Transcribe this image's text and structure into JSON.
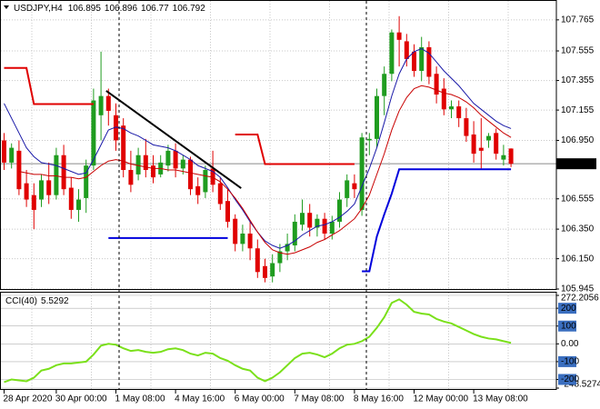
{
  "chart_data": [
    {
      "type": "candlestick",
      "title": "USDJPY,H4",
      "categories": [
        "28 Apr 2020",
        null,
        null,
        null,
        null,
        null,
        null,
        "30 Apr 00:00",
        null,
        null,
        null,
        null,
        null,
        null,
        null,
        "1 May 08:00",
        null,
        null,
        null,
        null,
        null,
        null,
        null,
        "4 May 16:00",
        null,
        null,
        null,
        null,
        null,
        null,
        null,
        "6 May 00:00",
        null,
        null,
        null,
        null,
        null,
        null,
        null,
        "7 May 08:00",
        null,
        null,
        null,
        null,
        null,
        null,
        null,
        "8 May 16:00",
        null,
        null,
        null,
        null,
        null,
        null,
        null,
        "12 May 00:00",
        null,
        null,
        null,
        null,
        null,
        null,
        null,
        "13 May 08:00",
        null,
        null,
        null,
        null,
        null
      ],
      "open": [
        106.95,
        106.8,
        106.88,
        106.66,
        106.58,
        106.55,
        106.68,
        106.58,
        106.85,
        106.63,
        106.48,
        106.56,
        106.78,
        107.12,
        107.25,
        107.12,
        107.05,
        106.75,
        106.72,
        106.85,
        106.78,
        106.72,
        106.78,
        106.88,
        106.76,
        106.82,
        106.64,
        106.6,
        106.76,
        106.66,
        106.54,
        106.42,
        106.25,
        106.32,
        106.22,
        106.1,
        106.03,
        106.12,
        106.2,
        106.24,
        106.38,
        106.46,
        106.36,
        106.42,
        106.32,
        106.4,
        106.56,
        106.66,
        106.48,
        106.95,
        106.96,
        107.25,
        107.4,
        107.68,
        107.62,
        107.55,
        107.42,
        107.58,
        107.4,
        107.3,
        107.16,
        107.18,
        107.1,
        106.99,
        106.9,
        106.95,
        107.0,
        106.82,
        106.895
      ],
      "high": [
        107.0,
        106.93,
        106.95,
        106.75,
        106.66,
        106.72,
        106.8,
        106.9,
        106.92,
        106.7,
        106.62,
        106.82,
        107.3,
        107.55,
        107.3,
        107.2,
        107.1,
        106.88,
        106.9,
        106.96,
        106.85,
        106.85,
        106.92,
        106.93,
        106.85,
        106.84,
        106.7,
        106.78,
        106.88,
        106.7,
        106.62,
        106.45,
        106.38,
        106.4,
        106.28,
        106.15,
        106.18,
        106.25,
        106.32,
        106.45,
        106.55,
        106.52,
        106.45,
        106.46,
        106.44,
        106.6,
        106.72,
        106.72,
        107.0,
        107.0,
        107.3,
        107.45,
        107.7,
        107.79,
        107.67,
        107.6,
        107.65,
        107.62,
        107.45,
        107.37,
        107.22,
        107.22,
        107.17,
        107.08,
        107.1,
        107.0,
        107.03,
        106.92,
        106.896
      ],
      "low": [
        106.75,
        106.76,
        106.58,
        106.5,
        106.35,
        106.5,
        106.52,
        106.55,
        106.58,
        106.42,
        106.4,
        106.46,
        106.75,
        106.95,
        107.05,
        106.88,
        106.7,
        106.6,
        106.68,
        106.7,
        106.66,
        106.7,
        106.74,
        106.7,
        106.72,
        106.58,
        106.52,
        106.56,
        106.6,
        106.48,
        106.36,
        106.2,
        106.2,
        106.14,
        106.02,
        105.99,
        105.99,
        106.06,
        106.14,
        106.2,
        106.34,
        106.3,
        106.3,
        106.28,
        106.28,
        106.36,
        106.5,
        106.56,
        106.44,
        106.85,
        106.9,
        107.12,
        107.35,
        107.45,
        107.45,
        107.38,
        107.35,
        107.33,
        107.2,
        107.12,
        107.1,
        107.04,
        106.94,
        106.8,
        106.76,
        106.9,
        106.82,
        106.78,
        106.77
      ],
      "close": [
        106.8,
        106.9,
        106.62,
        106.55,
        106.48,
        106.68,
        106.58,
        106.85,
        106.62,
        106.48,
        106.55,
        106.78,
        107.22,
        107.25,
        107.15,
        106.95,
        106.75,
        106.65,
        106.85,
        106.75,
        106.7,
        106.8,
        106.88,
        106.76,
        106.82,
        106.62,
        106.58,
        106.75,
        106.65,
        106.52,
        106.4,
        106.25,
        106.32,
        106.22,
        106.06,
        106.02,
        106.12,
        106.2,
        106.25,
        106.4,
        106.46,
        106.36,
        106.42,
        106.32,
        106.4,
        106.55,
        106.68,
        106.62,
        106.97,
        106.96,
        107.25,
        107.4,
        107.68,
        107.63,
        107.5,
        107.42,
        107.58,
        107.38,
        107.26,
        107.16,
        107.18,
        107.1,
        106.98,
        106.86,
        106.88,
        106.98,
        106.86,
        106.85,
        106.792
      ],
      "up_color": "#1f9c1f",
      "down_color": "#e00000",
      "ylim": [
        105.945,
        107.887
      ],
      "yticks": [
        105.945,
        {
          "value": 106.15,
          "label": "106.150"
        },
        {
          "value": 106.35,
          "label": "106.350"
        },
        106.555,
        {
          "value": 106.95,
          "label": "106.950"
        },
        107.155,
        107.355,
        107.555,
        107.765
      ],
      "grid": true,
      "current_price": 106.792,
      "overlays": [
        {
          "color": "#1a1aa8",
          "width": 1,
          "values": [
            107.2,
            107.1,
            107.0,
            106.9,
            106.84,
            106.8,
            106.79,
            106.78,
            106.76,
            106.74,
            106.72,
            106.73,
            106.82,
            106.92,
            107.02,
            107.04,
            107.03,
            107.0,
            106.98,
            106.95,
            106.92,
            106.91,
            106.9,
            106.88,
            106.85,
            106.82,
            106.78,
            106.76,
            106.74,
            106.7,
            106.63,
            106.55,
            106.48,
            106.4,
            106.33,
            106.27,
            106.24,
            106.22,
            106.24,
            106.27,
            106.31,
            106.34,
            106.37,
            106.38,
            106.4,
            106.43,
            106.47,
            106.52,
            106.64,
            106.76,
            106.9,
            107.07,
            107.25,
            107.4,
            107.5,
            107.55,
            107.57,
            107.54,
            107.48,
            107.42,
            107.37,
            107.32,
            107.26,
            107.2,
            107.16,
            107.12,
            107.08,
            107.05,
            107.03
          ]
        },
        {
          "color": "#c80000",
          "width": 1,
          "values": [
            null,
            null,
            106.74,
            106.73,
            106.72,
            106.72,
            106.71,
            106.71,
            106.7,
            106.7,
            106.69,
            106.7,
            106.74,
            106.78,
            106.81,
            106.82,
            106.81,
            106.79,
            106.78,
            106.77,
            106.76,
            106.76,
            106.75,
            106.75,
            106.74,
            106.73,
            106.72,
            106.71,
            106.7,
            106.67,
            106.62,
            106.56,
            106.49,
            106.41,
            106.33,
            106.26,
            106.21,
            106.19,
            106.18,
            106.19,
            106.21,
            106.23,
            106.26,
            106.28,
            106.31,
            106.34,
            106.38,
            106.42,
            106.49,
            106.58,
            106.72,
            106.86,
            107.02,
            107.15,
            107.24,
            107.3,
            107.32,
            107.31,
            107.29,
            107.27,
            107.26,
            107.24,
            107.21,
            107.17,
            107.12,
            107.08,
            107.04,
            107.0,
            106.97
          ]
        },
        {
          "color": "#e00000",
          "width": 2,
          "values": [
            107.44,
            107.44,
            107.44,
            107.44,
            107.196,
            107.196,
            107.196,
            107.196,
            107.196,
            107.196,
            107.196,
            107.196,
            107.196,
            null,
            null,
            null,
            null,
            null,
            null,
            null,
            null,
            null,
            null,
            null,
            null,
            null,
            null,
            null,
            null,
            null,
            null,
            106.99,
            106.99,
            106.99,
            106.99,
            106.79,
            106.79,
            106.79,
            106.79,
            106.79,
            106.79,
            106.79,
            106.79,
            106.79,
            106.79,
            106.79,
            106.79,
            106.79,
            null,
            null,
            null,
            null,
            null,
            null,
            null,
            null,
            null,
            null,
            null,
            null,
            null,
            null,
            null,
            null,
            null,
            null,
            null,
            null,
            null
          ]
        },
        {
          "color": "#0000dd",
          "width": 2,
          "values": [
            null,
            null,
            null,
            null,
            null,
            null,
            null,
            null,
            null,
            null,
            null,
            null,
            null,
            null,
            106.29,
            106.29,
            106.29,
            106.29,
            106.29,
            106.29,
            106.29,
            106.29,
            106.29,
            106.29,
            106.29,
            106.29,
            106.29,
            106.29,
            106.29,
            106.29,
            106.29,
            null,
            null,
            null,
            null,
            null,
            null,
            null,
            null,
            null,
            null,
            null,
            null,
            null,
            null,
            null,
            null,
            null,
            106.065,
            106.065,
            106.3,
            106.45,
            106.59,
            106.755,
            106.755,
            106.755,
            106.755,
            106.755,
            106.755,
            106.755,
            106.755,
            106.755,
            106.755,
            106.755,
            106.755,
            106.755,
            106.755,
            106.755,
            106.755
          ]
        }
      ],
      "trendline": {
        "color": "#000000",
        "x": [
          13.7,
          31.8
        ],
        "values": [
          107.285,
          106.627
        ]
      }
    },
    {
      "type": "line",
      "series": [
        {
          "name": "CCI(40)",
          "color": "#7ae01a",
          "values": [
            -215,
            -200,
            -205,
            -210,
            -190,
            -150,
            -140,
            -120,
            -110,
            -110,
            -105,
            -100,
            -60,
            -10,
            0,
            -5,
            -25,
            -40,
            -35,
            -45,
            -50,
            -45,
            -30,
            -25,
            -35,
            -55,
            -65,
            -50,
            -55,
            -80,
            -95,
            -120,
            -140,
            -150,
            -190,
            -210,
            -190,
            -160,
            -120,
            -80,
            -55,
            -50,
            -60,
            -75,
            -55,
            -25,
            -5,
            0,
            15,
            40,
            90,
            150,
            230,
            250,
            220,
            180,
            170,
            165,
            140,
            125,
            115,
            95,
            75,
            55,
            40,
            30,
            25,
            15,
            5.5292
          ]
        }
      ],
      "ylim": [
        -248.5274,
        272.2056
      ],
      "yticks": [
        -248.5274,
        -200,
        -100,
        {
          "value": 0,
          "label": "0.00"
        },
        100,
        200,
        272.2056
      ]
    }
  ]
}
